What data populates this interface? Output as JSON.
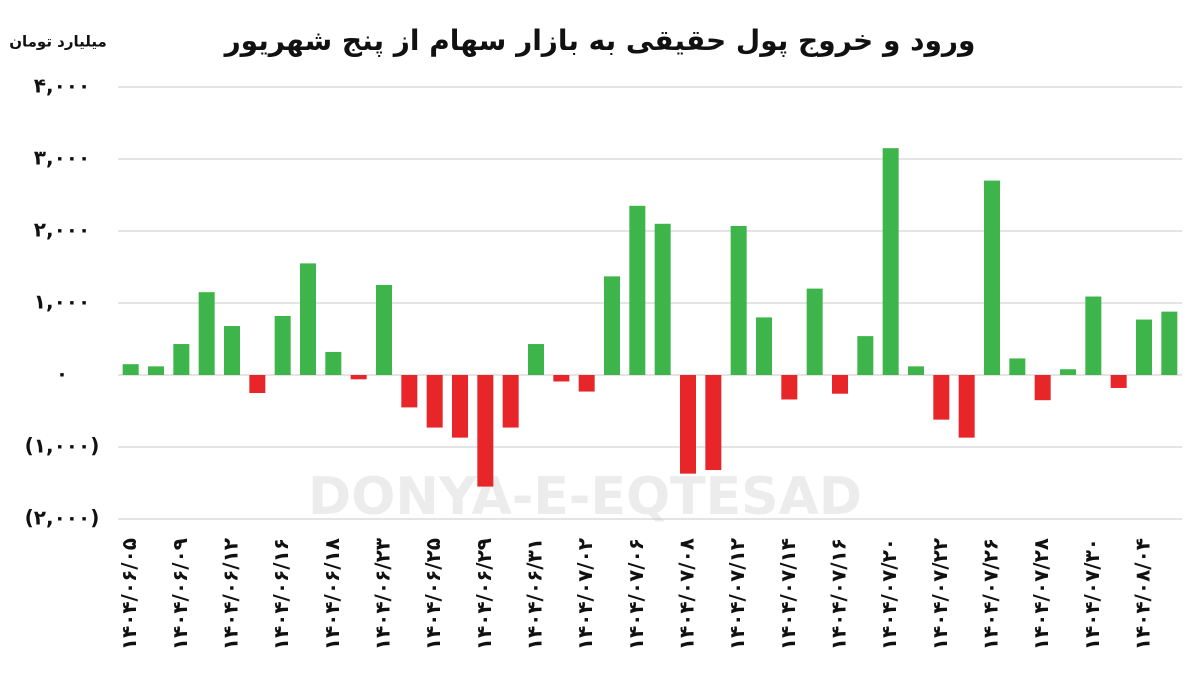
{
  "chart_data": {
    "type": "bar",
    "title": "ورود و خروج پول حقیقی به بازار سهام از پنج شهریور",
    "y_axis_label": "میلیارد تومان",
    "watermark": "DONYA-E-EQTESAD",
    "categories": [
      "۱۴۰۴/۰۶/۰۵",
      null,
      "۱۴۰۴/۰۶/۰۹",
      null,
      "۱۴۰۴/۰۶/۱۲",
      null,
      "۱۴۰۴/۰۶/۱۶",
      null,
      "۱۴۰۴/۰۶/۱۸",
      null,
      "۱۴۰۴/۰۶/۲۳",
      null,
      "۱۴۰۴/۰۶/۲۵",
      null,
      "۱۴۰۴/۰۶/۲۹",
      null,
      "۱۴۰۴/۰۶/۳۱",
      null,
      "۱۴۰۴/۰۷/۰۲",
      null,
      "۱۴۰۴/۰۷/۰۶",
      null,
      "۱۴۰۴/۰۷/۰۸",
      null,
      "۱۴۰۴/۰۷/۱۲",
      null,
      "۱۴۰۴/۰۷/۱۴",
      null,
      "۱۴۰۴/۰۷/۱۶",
      null,
      "۱۴۰۴/۰۷/۲۰",
      null,
      "۱۴۰۴/۰۷/۲۲",
      null,
      "۱۴۰۴/۰۷/۲۶",
      null,
      "۱۴۰۴/۰۷/۲۸",
      null,
      "۱۴۰۴/۰۷/۳۰",
      null,
      "۱۴۰۴/۰۸/۰۴",
      null
    ],
    "values": [
      150,
      120,
      430,
      1150,
      680,
      -250,
      820,
      1550,
      320,
      -60,
      1250,
      -450,
      -730,
      -870,
      -1550,
      -730,
      430,
      -90,
      -230,
      1370,
      2350,
      2100,
      -1370,
      -1320,
      2070,
      800,
      -340,
      1200,
      -260,
      540,
      3150,
      120,
      -620,
      -870,
      2700,
      230,
      -350,
      80,
      1090,
      -180,
      770,
      880
    ],
    "positive_color": "#3db54a",
    "negative_color": "#e8262a",
    "ylim": [
      -2000,
      4000
    ],
    "yticks": [
      {
        "value": -2000,
        "label": "(۲,۰۰۰)"
      },
      {
        "value": -1000,
        "label": "(۱,۰۰۰)"
      },
      {
        "value": 0,
        "label": "۰"
      },
      {
        "value": 1000,
        "label": "۱,۰۰۰"
      },
      {
        "value": 2000,
        "label": "۲,۰۰۰"
      },
      {
        "value": 3000,
        "label": "۳,۰۰۰"
      },
      {
        "value": 4000,
        "label": "۴,۰۰۰"
      }
    ],
    "grid": true
  }
}
